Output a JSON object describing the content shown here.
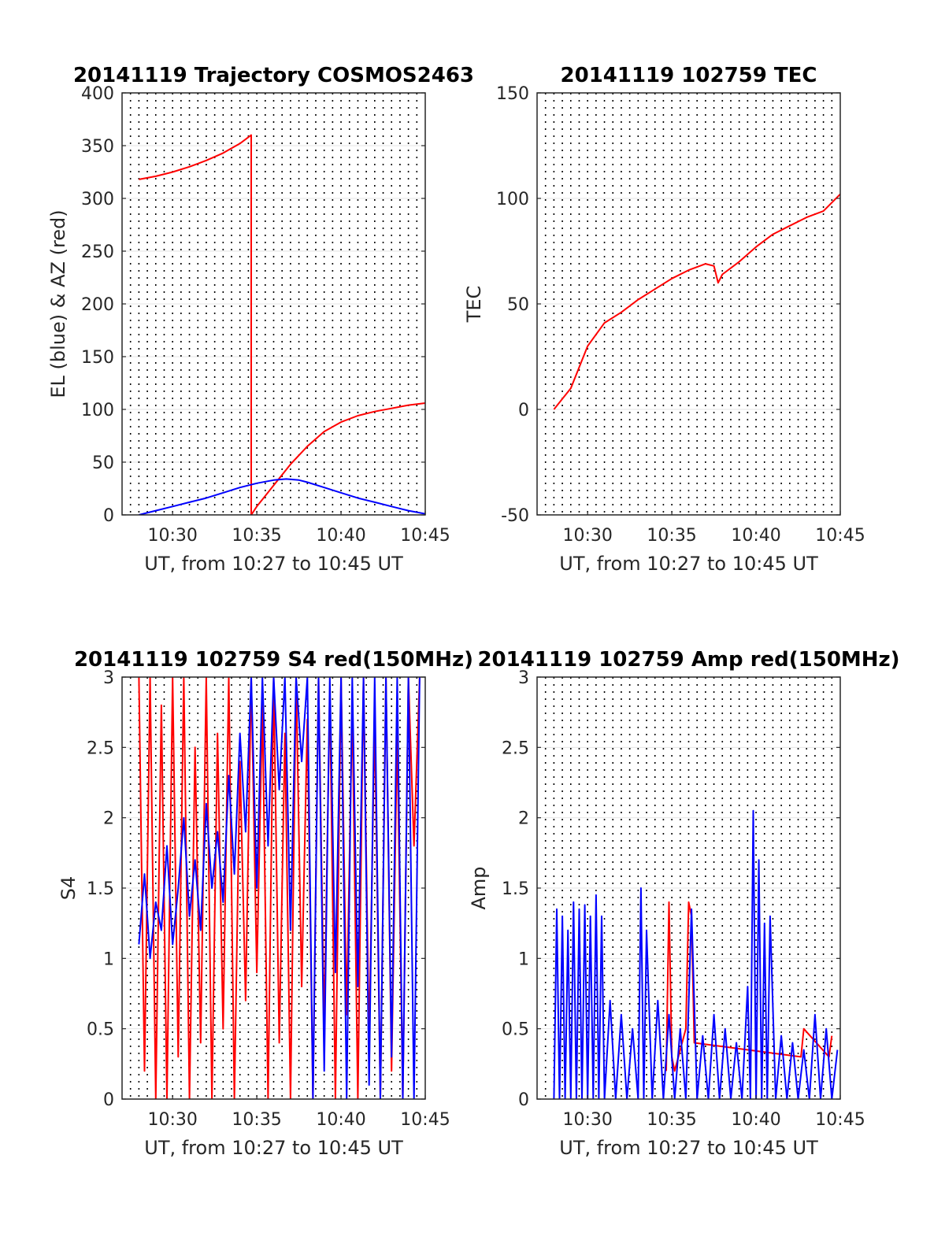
{
  "chart_data": [
    {
      "type": "line",
      "title": "20141119 Trajectory COSMOS2463",
      "xlabel": "UT, from 10:27 to 10:45 UT",
      "ylabel": "EL (blue) & AZ (red)",
      "xlim": [
        "10:27",
        "10:45"
      ],
      "ylim": [
        0,
        400
      ],
      "xticks": [
        "10:30",
        "10:35",
        "10:40",
        "10:45"
      ],
      "yticks": [
        "0",
        "50",
        "100",
        "150",
        "200",
        "250",
        "300",
        "350",
        "400"
      ],
      "grid": "dotted vertical every 30 s, horizontal at y ticks",
      "series": [
        {
          "name": "AZ (red)",
          "color": "#ff0000",
          "x": [
            "10:28:00",
            "10:29:00",
            "10:30:00",
            "10:31:00",
            "10:32:00",
            "10:33:00",
            "10:34:00",
            "10:34:40",
            "10:34:40",
            "10:35:00",
            "10:36:00",
            "10:37:00",
            "10:38:00",
            "10:39:00",
            "10:40:00",
            "10:41:00",
            "10:42:00",
            "10:43:00",
            "10:44:00",
            "10:45:00"
          ],
          "values": [
            318,
            321,
            325,
            330,
            336,
            343,
            352,
            360,
            0,
            8,
            28,
            48,
            65,
            79,
            88,
            94,
            98,
            101,
            104,
            106
          ]
        },
        {
          "name": "EL (blue)",
          "color": "#0000ff",
          "x": [
            "10:28:00",
            "10:29:00",
            "10:30:00",
            "10:31:00",
            "10:32:00",
            "10:33:00",
            "10:34:00",
            "10:35:00",
            "10:36:00",
            "10:36:45",
            "10:37:30",
            "10:38:00",
            "10:39:00",
            "10:40:00",
            "10:41:00",
            "10:42:00",
            "10:43:00",
            "10:44:00",
            "10:45:00"
          ],
          "values": [
            0,
            4,
            8,
            12,
            16,
            21,
            26,
            30,
            33,
            34,
            33,
            31,
            26,
            21,
            16,
            12,
            8,
            4,
            1
          ]
        }
      ]
    },
    {
      "type": "line",
      "title": "20141119 102759 TEC",
      "xlabel": "UT, from 10:27 to 10:45 UT",
      "ylabel": "TEC",
      "xlim": [
        "10:27",
        "10:45"
      ],
      "ylim": [
        -50,
        150
      ],
      "xticks": [
        "10:30",
        "10:35",
        "10:40",
        "10:45"
      ],
      "yticks": [
        "-50",
        "0",
        "50",
        "100",
        "150"
      ],
      "grid": "dotted vertical every 30 s, horizontal at y ticks",
      "series": [
        {
          "name": "TEC",
          "color": "#ff0000",
          "x": [
            "10:28:00",
            "10:29:00",
            "10:30:00",
            "10:31:00",
            "10:32:00",
            "10:33:00",
            "10:34:00",
            "10:35:00",
            "10:36:00",
            "10:37:00",
            "10:37:30",
            "10:37:45",
            "10:38:00",
            "10:39:00",
            "10:40:00",
            "10:41:00",
            "10:42:00",
            "10:43:00",
            "10:44:00",
            "10:45:00"
          ],
          "values": [
            0,
            10,
            30,
            41,
            46,
            52,
            57,
            62,
            66,
            69,
            68,
            60,
            64,
            70,
            77,
            83,
            87,
            91,
            94,
            102
          ]
        }
      ]
    },
    {
      "type": "line",
      "title": "20141119 102759 S4 red(150MHz)",
      "xlabel": "UT, from 10:27 to 10:45 UT",
      "ylabel": "S4",
      "xlim": [
        "10:27",
        "10:45"
      ],
      "ylim": [
        0,
        3
      ],
      "xticks": [
        "10:30",
        "10:35",
        "10:40",
        "10:45"
      ],
      "yticks": [
        "0",
        "0.5",
        "1",
        "1.5",
        "2",
        "2.5",
        "3"
      ],
      "grid": "dotted vertical every 30 s, horizontal at y ticks",
      "series": [
        {
          "name": "red",
          "color": "#ff0000",
          "x": [
            "10:28:00",
            "10:28:20",
            "10:28:40",
            "10:29:00",
            "10:29:20",
            "10:29:40",
            "10:30:00",
            "10:30:20",
            "10:30:40",
            "10:31:00",
            "10:31:20",
            "10:31:40",
            "10:32:00",
            "10:32:20",
            "10:32:40",
            "10:33:00",
            "10:33:20",
            "10:33:40",
            "10:34:00",
            "10:34:20",
            "10:34:40",
            "10:35:00",
            "10:35:20",
            "10:35:40",
            "10:36:00",
            "10:36:20",
            "10:36:40",
            "10:37:00",
            "10:37:20",
            "10:37:40",
            "10:38:00",
            "10:38:20",
            "10:38:40",
            "10:39:00",
            "10:39:20",
            "10:39:40",
            "10:40:00",
            "10:40:20",
            "10:40:40",
            "10:41:00",
            "10:41:20",
            "10:41:40",
            "10:42:00",
            "10:42:20",
            "10:42:40",
            "10:43:00",
            "10:43:20",
            "10:43:40",
            "10:44:00",
            "10:44:20",
            "10:44:40"
          ],
          "values": [
            3,
            0.2,
            3,
            0,
            2.8,
            0,
            3,
            0.3,
            3,
            0,
            2.5,
            0.4,
            3,
            0,
            2.6,
            0.5,
            3,
            0,
            2.4,
            0.7,
            3,
            0.9,
            2.8,
            0,
            3,
            0.4,
            2.6,
            0,
            3,
            0.8,
            2.7,
            0,
            3,
            0.5,
            2.9,
            0,
            3,
            0.6,
            2.8,
            0,
            3,
            0.4,
            2.7,
            0,
            3,
            0.2,
            2.6,
            0,
            3,
            1.8,
            3
          ]
        },
        {
          "name": "blue",
          "color": "#0000ff",
          "x": [
            "10:28:00",
            "10:28:20",
            "10:28:40",
            "10:29:00",
            "10:29:20",
            "10:29:40",
            "10:30:00",
            "10:30:20",
            "10:30:40",
            "10:31:00",
            "10:31:20",
            "10:31:40",
            "10:32:00",
            "10:32:20",
            "10:32:40",
            "10:33:00",
            "10:33:20",
            "10:33:40",
            "10:34:00",
            "10:34:20",
            "10:34:40",
            "10:35:00",
            "10:35:20",
            "10:35:40",
            "10:36:00",
            "10:36:20",
            "10:36:40",
            "10:37:00",
            "10:37:20",
            "10:37:40",
            "10:38:00",
            "10:38:20",
            "10:38:40",
            "10:39:00",
            "10:39:20",
            "10:39:40",
            "10:40:00",
            "10:40:20",
            "10:40:40",
            "10:41:00",
            "10:41:20",
            "10:41:40",
            "10:42:00",
            "10:42:20",
            "10:42:40",
            "10:43:00",
            "10:43:20",
            "10:43:40",
            "10:44:00",
            "10:44:20",
            "10:44:40"
          ],
          "values": [
            1.1,
            1.6,
            1.0,
            1.4,
            1.2,
            1.8,
            1.1,
            1.5,
            2.0,
            1.3,
            1.7,
            1.2,
            2.1,
            1.5,
            1.9,
            1.4,
            2.3,
            1.6,
            2.6,
            1.9,
            3.0,
            1.5,
            3.0,
            1.8,
            3.0,
            2.2,
            3.0,
            1.2,
            3.0,
            2.4,
            3.0,
            0,
            3.0,
            0.2,
            3.0,
            0.9,
            3.0,
            0,
            3.0,
            0.8,
            3.0,
            0.1,
            3.0,
            0,
            3.0,
            0.3,
            3.0,
            0,
            3.0,
            0,
            3.0
          ]
        }
      ]
    },
    {
      "type": "line",
      "title": "20141119 102759 Amp red(150MHz)",
      "xlabel": "UT, from 10:27 to 10:45 UT",
      "ylabel": "Amp",
      "xlim": [
        "10:27",
        "10:45"
      ],
      "ylim": [
        0,
        3
      ],
      "xticks": [
        "10:30",
        "10:35",
        "10:40",
        "10:45"
      ],
      "yticks": [
        "0",
        "0.5",
        "1",
        "1.5",
        "2",
        "2.5",
        "3"
      ],
      "grid": "dotted vertical every 30 s, horizontal at y ticks",
      "series": [
        {
          "name": "red",
          "color": "#ff0000",
          "x": [
            "10:34:40",
            "10:34:50",
            "10:35:00",
            "10:35:10",
            "10:35:50",
            "10:36:00",
            "10:36:10",
            "10:36:20",
            "10:42:40",
            "10:42:50",
            "10:44:20",
            "10:44:30"
          ],
          "values": [
            0.2,
            1.4,
            0.3,
            0.2,
            0.5,
            1.4,
            1.3,
            0.4,
            0.3,
            0.5,
            0.3,
            0.45
          ]
        },
        {
          "name": "blue",
          "color": "#0000ff",
          "x": [
            "10:28:00",
            "10:28:10",
            "10:28:20",
            "10:28:30",
            "10:28:40",
            "10:28:50",
            "10:29:00",
            "10:29:10",
            "10:29:20",
            "10:29:30",
            "10:29:40",
            "10:29:50",
            "10:30:00",
            "10:30:10",
            "10:30:20",
            "10:30:30",
            "10:30:40",
            "10:30:50",
            "10:31:00",
            "10:31:20",
            "10:31:40",
            "10:32:00",
            "10:32:20",
            "10:32:40",
            "10:33:00",
            "10:33:10",
            "10:33:20",
            "10:33:30",
            "10:33:50",
            "10:34:10",
            "10:34:30",
            "10:34:50",
            "10:35:10",
            "10:35:30",
            "10:35:50",
            "10:36:10",
            "10:36:30",
            "10:36:50",
            "10:37:10",
            "10:37:30",
            "10:37:50",
            "10:38:10",
            "10:38:30",
            "10:38:50",
            "10:39:10",
            "10:39:30",
            "10:39:40",
            "10:39:50",
            "10:40:00",
            "10:40:10",
            "10:40:20",
            "10:40:30",
            "10:40:40",
            "10:40:50",
            "10:41:10",
            "10:41:30",
            "10:41:50",
            "10:42:10",
            "10:42:30",
            "10:42:50",
            "10:43:10",
            "10:43:30",
            "10:43:50",
            "10:44:10",
            "10:44:30",
            "10:44:50"
          ],
          "values": [
            0,
            1.35,
            0,
            1.3,
            0,
            1.2,
            0,
            1.4,
            0,
            1.35,
            0,
            1.38,
            0,
            1.3,
            0,
            1.45,
            0,
            1.3,
            0,
            0.7,
            0,
            0.6,
            0,
            0.5,
            0,
            1.5,
            0,
            1.2,
            0,
            0.7,
            0,
            0.6,
            0,
            0.5,
            0,
            1.35,
            0,
            0.45,
            0,
            0.6,
            0,
            0.5,
            0,
            0.4,
            0,
            0.8,
            0,
            2.05,
            0,
            1.7,
            0,
            1.25,
            0,
            1.3,
            0,
            0.45,
            0,
            0.4,
            0,
            0.35,
            0,
            0.6,
            0,
            0.5,
            0,
            0.35
          ]
        }
      ]
    }
  ]
}
